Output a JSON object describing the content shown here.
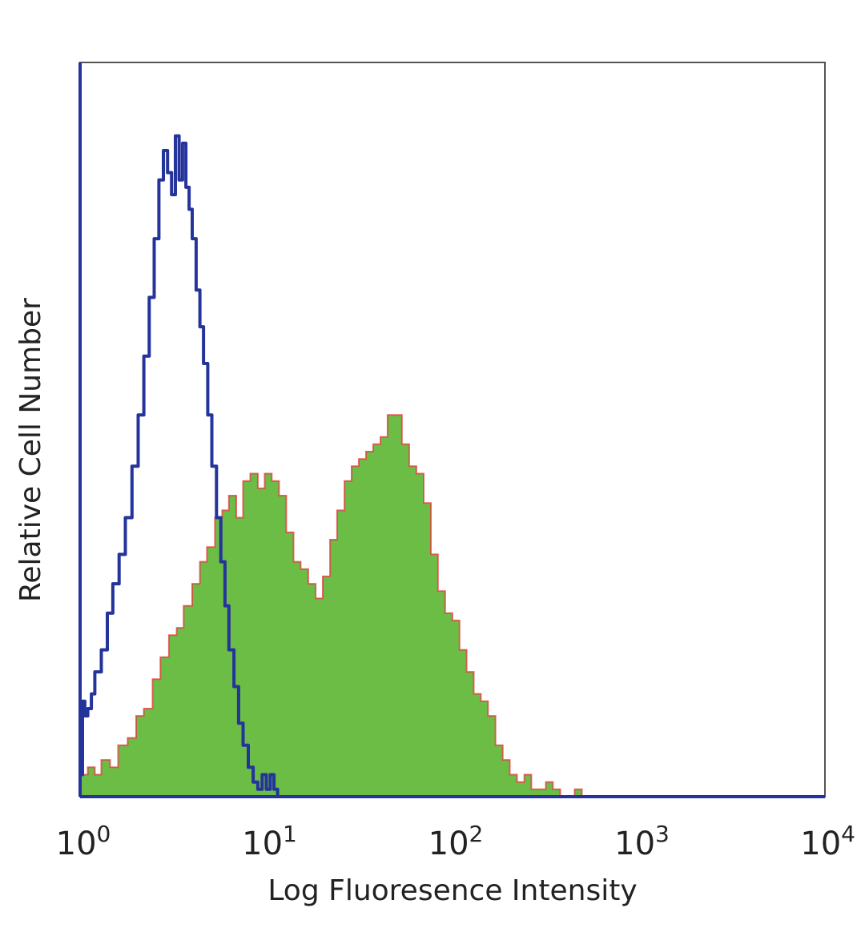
{
  "chart_data": {
    "type": "area",
    "title": "",
    "xlabel": "Log Fluoresence Intensity",
    "ylabel": "Relative Cell Number",
    "x_scale": "log",
    "xlim": [
      1,
      10000
    ],
    "ylim": [
      0,
      100
    ],
    "x_ticks": [
      {
        "value": 1,
        "base": "10",
        "exp": "0"
      },
      {
        "value": 10,
        "base": "10",
        "exp": "1"
      },
      {
        "value": 100,
        "base": "10",
        "exp": "2"
      },
      {
        "value": 1000,
        "base": "10",
        "exp": "3"
      },
      {
        "value": 10000,
        "base": "10",
        "exp": "4"
      }
    ],
    "grid": false,
    "legend": "none",
    "series": [
      {
        "style": "filled",
        "fill_color": "#6cbd45",
        "edge_color": "#e03a3a",
        "x": [
          1.0,
          1.1,
          1.2,
          1.3,
          1.45,
          1.6,
          1.8,
          2.0,
          2.2,
          2.45,
          2.7,
          3.0,
          3.3,
          3.6,
          4.0,
          4.4,
          4.8,
          5.3,
          5.8,
          6.3,
          6.9,
          7.5,
          8.2,
          9.0,
          9.8,
          10.7,
          11.7,
          12.8,
          14.0,
          15.3,
          16.8,
          18.4,
          20.1,
          22.0,
          24.0,
          26.3,
          28.7,
          31.4,
          34.3,
          37.5,
          41.0,
          44.8,
          49.0,
          53.5,
          58.5,
          64.0,
          70.0,
          76.5,
          83.5,
          91.3,
          99.8,
          109,
          119,
          130,
          142,
          155,
          170,
          186,
          203,
          222,
          243,
          265,
          290,
          317,
          346,
          379,
          414,
          453,
          495
        ],
        "values": [
          3,
          4,
          3,
          5,
          4,
          7,
          8,
          11,
          12,
          16,
          19,
          22,
          23,
          26,
          29,
          32,
          34,
          38,
          39,
          41,
          38,
          43,
          44,
          42,
          44,
          43,
          41,
          36,
          32,
          31,
          29,
          27,
          30,
          35,
          39,
          43,
          45,
          46,
          47,
          48,
          49,
          52,
          52,
          48,
          45,
          44,
          40,
          33,
          28,
          25,
          24,
          20,
          17,
          14,
          13,
          11,
          7,
          5,
          3,
          2,
          3,
          1,
          1,
          2,
          1,
          0,
          0,
          1,
          0
        ]
      },
      {
        "style": "outline",
        "line_color": "#24349b",
        "x": [
          1.0,
          1.03,
          1.06,
          1.1,
          1.15,
          1.2,
          1.3,
          1.4,
          1.5,
          1.62,
          1.75,
          1.9,
          2.05,
          2.2,
          2.35,
          2.5,
          2.65,
          2.8,
          2.95,
          3.1,
          3.25,
          3.4,
          3.55,
          3.7,
          3.85,
          4.0,
          4.2,
          4.4,
          4.6,
          4.85,
          5.1,
          5.4,
          5.7,
          6.0,
          6.3,
          6.7,
          7.1,
          7.5,
          8.0,
          8.5,
          9.0,
          9.5,
          10.0,
          10.5,
          11.0,
          11.5
        ],
        "values": [
          3,
          13,
          11,
          12,
          14,
          17,
          20,
          25,
          29,
          33,
          38,
          45,
          52,
          60,
          68,
          76,
          84,
          88,
          85,
          82,
          90,
          84,
          89,
          83,
          80,
          76,
          69,
          64,
          59,
          52,
          45,
          38,
          32,
          26,
          20,
          15,
          10,
          7,
          4,
          2,
          1,
          3,
          1,
          3,
          1,
          0
        ]
      }
    ]
  }
}
